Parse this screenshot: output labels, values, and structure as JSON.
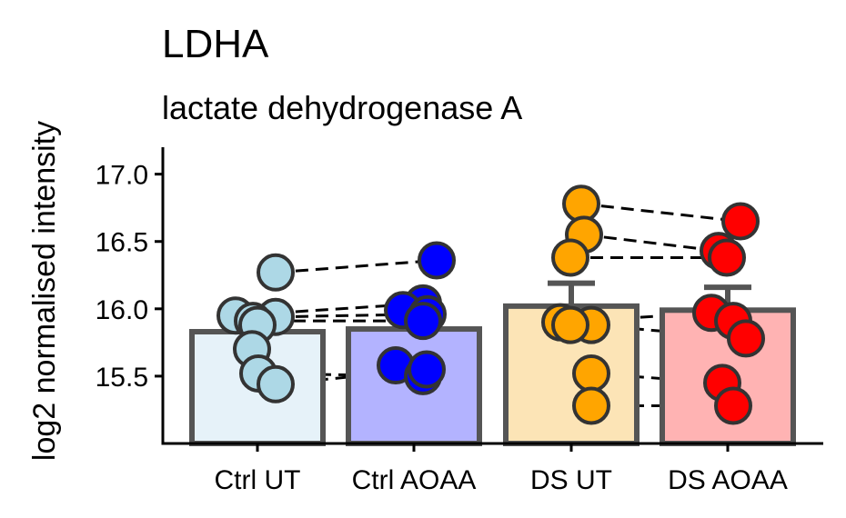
{
  "chart_data": {
    "type": "bar",
    "title": "LDHA",
    "subtitle": "lactate dehydrogenase A",
    "ylabel": "log2 normalised intensity",
    "xlabel": "",
    "categories": [
      "Ctrl UT",
      "Ctrl AOAA",
      "DS UT",
      "DS AOAA"
    ],
    "ylim": [
      15.0,
      17.2
    ],
    "yticks": [
      15.5,
      16.0,
      16.5,
      17.0
    ],
    "ytick_labels": [
      "15.5",
      "16.0",
      "16.5",
      "17.0"
    ],
    "bar_colors": [
      "#e6f2f9",
      "#b3b3ff",
      "#fce4b6",
      "#ffb3b3"
    ],
    "point_colors": [
      "#add8e6",
      "#0000ff",
      "#ffa500",
      "#ff0000"
    ],
    "means": [
      15.83,
      15.85,
      16.02,
      15.99
    ],
    "error_top": [
      null,
      null,
      16.19,
      16.16
    ],
    "points": [
      [
        16.27,
        15.95,
        15.94,
        15.91,
        15.88,
        15.7,
        15.52,
        15.44
      ],
      [
        16.36,
        16.04,
        15.99,
        15.96,
        15.91,
        15.58,
        15.5,
        15.55
      ],
      [
        16.78,
        16.55,
        16.38,
        15.9,
        15.88,
        15.52,
        15.28,
        15.88
      ],
      [
        16.65,
        16.43,
        16.38,
        15.97,
        15.91,
        15.78,
        15.45,
        15.28
      ]
    ],
    "pairs": [
      [
        [
          0,
          0
        ],
        [
          1,
          0
        ]
      ],
      [
        [
          0,
          1
        ],
        [
          1,
          1
        ]
      ],
      [
        [
          0,
          2
        ],
        [
          1,
          3
        ]
      ],
      [
        [
          0,
          3
        ],
        [
          1,
          4
        ]
      ],
      [
        [
          0,
          6
        ],
        [
          1,
          6
        ]
      ],
      [
        [
          0,
          7
        ],
        [
          1,
          7
        ]
      ],
      [
        [
          2,
          0
        ],
        [
          3,
          0
        ]
      ],
      [
        [
          2,
          1
        ],
        [
          3,
          1
        ]
      ],
      [
        [
          2,
          2
        ],
        [
          3,
          2
        ]
      ],
      [
        [
          2,
          3
        ],
        [
          3,
          3
        ]
      ],
      [
        [
          2,
          4
        ],
        [
          3,
          5
        ]
      ],
      [
        [
          2,
          5
        ],
        [
          3,
          6
        ]
      ],
      [
        [
          2,
          6
        ],
        [
          3,
          7
        ]
      ]
    ]
  }
}
